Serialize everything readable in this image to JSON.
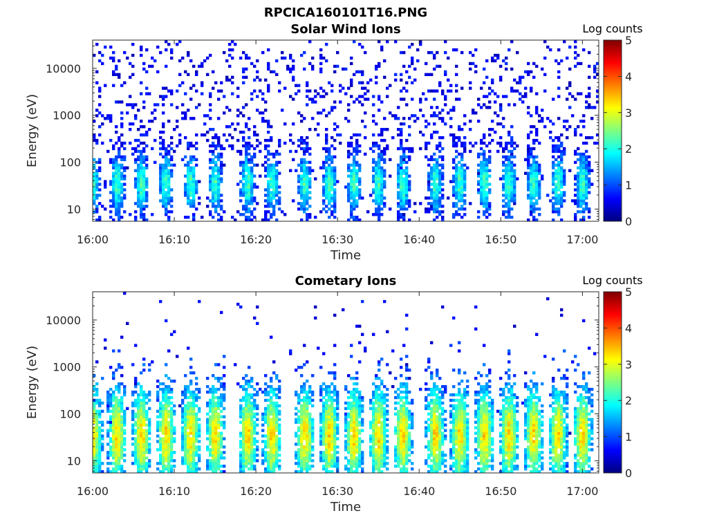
{
  "figure_title": "RPCICA160101T16.PNG",
  "chart_data": [
    {
      "type": "heatmap",
      "title": "Solar Wind Ions",
      "xlabel": "Time",
      "ylabel": "Energy (eV)",
      "x_ticks": [
        "16:00",
        "16:10",
        "16:20",
        "16:30",
        "16:40",
        "16:50",
        "17:00"
      ],
      "x_range": [
        "16:00",
        "17:02"
      ],
      "y_scale": "log",
      "y_ticks": [
        10,
        100,
        1000,
        10000
      ],
      "y_range": [
        5.5,
        40000
      ],
      "colorbar": {
        "label": "Log counts",
        "range": [
          0,
          5
        ],
        "ticks": [
          0,
          1,
          2,
          3,
          4,
          5
        ],
        "colormap": "jet"
      },
      "bursts_time": [
        "16:00",
        "16:03",
        "16:06",
        "16:09",
        "16:12",
        "16:15",
        "16:19",
        "16:22",
        "16:26",
        "16:29",
        "16:32",
        "16:35",
        "16:38",
        "16:42",
        "16:45",
        "16:48",
        "16:51",
        "16:54",
        "16:57",
        "17:00"
      ],
      "peak_energy_eV": 35,
      "peak_log_counts": 2.2,
      "background_log_counts": 0.6
    },
    {
      "type": "heatmap",
      "title": "Cometary Ions",
      "xlabel": "Time",
      "ylabel": "Energy (eV)",
      "x_ticks": [
        "16:00",
        "16:10",
        "16:20",
        "16:30",
        "16:40",
        "16:50",
        "17:00"
      ],
      "x_range": [
        "16:00",
        "17:02"
      ],
      "y_scale": "log",
      "y_ticks": [
        10,
        100,
        1000,
        10000
      ],
      "y_range": [
        5.5,
        40000
      ],
      "colorbar": {
        "label": "Log counts",
        "range": [
          0,
          5
        ],
        "ticks": [
          0,
          1,
          2,
          3,
          4,
          5
        ],
        "colormap": "jet"
      },
      "bursts_time": [
        "16:00",
        "16:03",
        "16:06",
        "16:09",
        "16:12",
        "16:15",
        "16:19",
        "16:22",
        "16:26",
        "16:29",
        "16:32",
        "16:35",
        "16:38",
        "16:42",
        "16:45",
        "16:48",
        "16:51",
        "16:54",
        "16:57",
        "17:00"
      ],
      "peak_energy_eV": 35,
      "peak_log_counts": 3.3,
      "background_log_counts": 0.8
    }
  ]
}
